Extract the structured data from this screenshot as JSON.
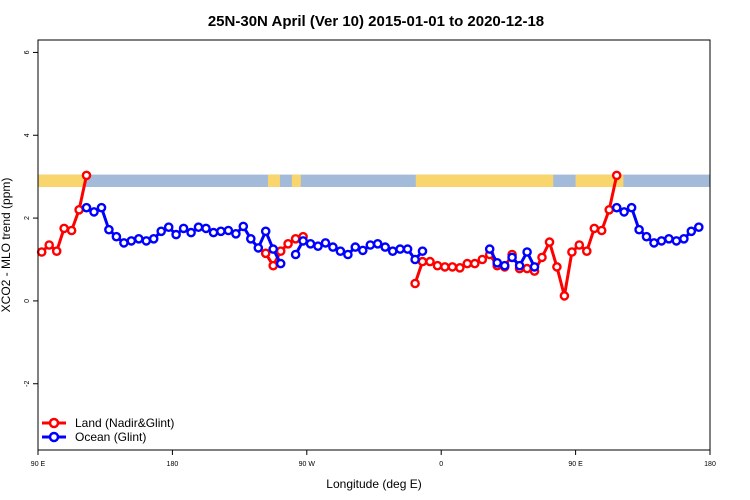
{
  "chart_data": {
    "type": "line",
    "title": "25N-30N April (Ver 10)   2015-01-01 to 2020-12-18",
    "xlabel": "Longitude (deg E)",
    "ylabel": "XCO2 - MLO trend (ppm)",
    "xlim": [
      90,
      540
    ],
    "ylim": [
      -3.6,
      6.3
    ],
    "x_ticks": [
      {
        "value": 90,
        "label": "90 E"
      },
      {
        "value": 180,
        "label": "180"
      },
      {
        "value": 270,
        "label": "90 W"
      },
      {
        "value": 360,
        "label": "0"
      },
      {
        "value": 450,
        "label": "90 E"
      },
      {
        "value": 540,
        "label": "180"
      }
    ],
    "y_ticks": [
      {
        "value": -2,
        "label": "-2"
      },
      {
        "value": 0,
        "label": "0"
      },
      {
        "value": 2,
        "label": "2"
      },
      {
        "value": 4,
        "label": "4"
      },
      {
        "value": 6,
        "label": "6"
      }
    ],
    "grid": false,
    "legend_position": "bottom-left",
    "land_strip": {
      "y_range": [
        2.75,
        3.05
      ],
      "ocean_color": "#a4bad9",
      "land_color": "#f8d66d",
      "land_segments": [
        [
          90,
          122
        ],
        [
          244,
          252
        ],
        [
          260,
          266
        ],
        [
          343,
          435
        ],
        [
          450,
          482
        ]
      ]
    },
    "series": [
      {
        "name": "Land (Nadir&Glint)",
        "color": "#ff0000",
        "segments": [
          [
            [
              92.5,
              1.18
            ],
            [
              97.5,
              1.35
            ],
            [
              102.5,
              1.2
            ],
            [
              107.5,
              1.75
            ],
            [
              112.5,
              1.7
            ],
            [
              117.5,
              2.2
            ],
            [
              122.5,
              3.03
            ]
          ],
          [
            [
              242.5,
              1.15
            ],
            [
              247.5,
              0.85
            ],
            [
              252.5,
              1.2
            ],
            [
              257.5,
              1.38
            ],
            [
              262.5,
              1.5
            ],
            [
              267.5,
              1.55
            ]
          ],
          [
            [
              342.5,
              0.42
            ],
            [
              347.5,
              0.95
            ],
            [
              352.5,
              0.95
            ],
            [
              357.5,
              0.85
            ],
            [
              362.5,
              0.82
            ],
            [
              367.5,
              0.82
            ],
            [
              372.5,
              0.8
            ],
            [
              377.5,
              0.9
            ],
            [
              382.5,
              0.9
            ],
            [
              387.5,
              1.0
            ],
            [
              392.5,
              1.12
            ],
            [
              397.5,
              0.85
            ],
            [
              402.5,
              0.82
            ],
            [
              407.5,
              1.12
            ],
            [
              412.5,
              0.78
            ],
            [
              417.5,
              0.78
            ],
            [
              422.5,
              0.72
            ],
            [
              427.5,
              1.05
            ],
            [
              432.5,
              1.42
            ],
            [
              437.5,
              0.82
            ],
            [
              442.5,
              0.12
            ],
            [
              447.5,
              1.18
            ],
            [
              452.5,
              1.35
            ],
            [
              457.5,
              1.2
            ],
            [
              462.5,
              1.75
            ],
            [
              467.5,
              1.7
            ],
            [
              472.5,
              2.2
            ],
            [
              477.5,
              3.03
            ]
          ]
        ]
      },
      {
        "name": "Ocean (Glint)",
        "color": "#0000ff",
        "segments": [
          [
            [
              122.5,
              2.25
            ],
            [
              127.5,
              2.15
            ],
            [
              132.5,
              2.25
            ],
            [
              137.5,
              1.72
            ],
            [
              142.5,
              1.55
            ],
            [
              147.5,
              1.4
            ],
            [
              152.5,
              1.45
            ],
            [
              157.5,
              1.5
            ],
            [
              162.5,
              1.45
            ],
            [
              167.5,
              1.5
            ],
            [
              172.5,
              1.68
            ],
            [
              177.5,
              1.78
            ],
            [
              182.5,
              1.6
            ],
            [
              187.5,
              1.75
            ],
            [
              192.5,
              1.65
            ],
            [
              197.5,
              1.78
            ],
            [
              202.5,
              1.75
            ],
            [
              207.5,
              1.65
            ],
            [
              212.5,
              1.68
            ],
            [
              217.5,
              1.7
            ],
            [
              222.5,
              1.62
            ],
            [
              227.5,
              1.8
            ],
            [
              232.5,
              1.5
            ],
            [
              237.5,
              1.28
            ],
            [
              242.5,
              1.68
            ],
            [
              247.5,
              1.25
            ],
            [
              252.5,
              0.9
            ]
          ],
          [
            [
              262.5,
              1.12
            ],
            [
              267.5,
              1.45
            ],
            [
              272.5,
              1.38
            ],
            [
              277.5,
              1.32
            ],
            [
              282.5,
              1.4
            ],
            [
              287.5,
              1.3
            ],
            [
              292.5,
              1.2
            ],
            [
              297.5,
              1.12
            ],
            [
              302.5,
              1.3
            ],
            [
              307.5,
              1.22
            ],
            [
              312.5,
              1.35
            ],
            [
              317.5,
              1.38
            ],
            [
              322.5,
              1.3
            ],
            [
              327.5,
              1.2
            ],
            [
              332.5,
              1.25
            ],
            [
              337.5,
              1.25
            ],
            [
              342.5,
              1.0
            ],
            [
              347.5,
              1.2
            ]
          ],
          [
            [
              392.5,
              1.25
            ],
            [
              397.5,
              0.92
            ],
            [
              402.5,
              0.85
            ]
          ],
          [
            [
              407.5,
              1.05
            ],
            [
              412.5,
              0.85
            ],
            [
              417.5,
              1.18
            ],
            [
              422.5,
              0.82
            ]
          ],
          [
            [
              477.5,
              2.25
            ],
            [
              482.5,
              2.15
            ],
            [
              487.5,
              2.25
            ],
            [
              492.5,
              1.72
            ],
            [
              497.5,
              1.55
            ],
            [
              502.5,
              1.4
            ],
            [
              507.5,
              1.45
            ],
            [
              512.5,
              1.5
            ],
            [
              517.5,
              1.45
            ],
            [
              522.5,
              1.5
            ],
            [
              527.5,
              1.68
            ],
            [
              532.5,
              1.78
            ]
          ]
        ]
      }
    ]
  }
}
